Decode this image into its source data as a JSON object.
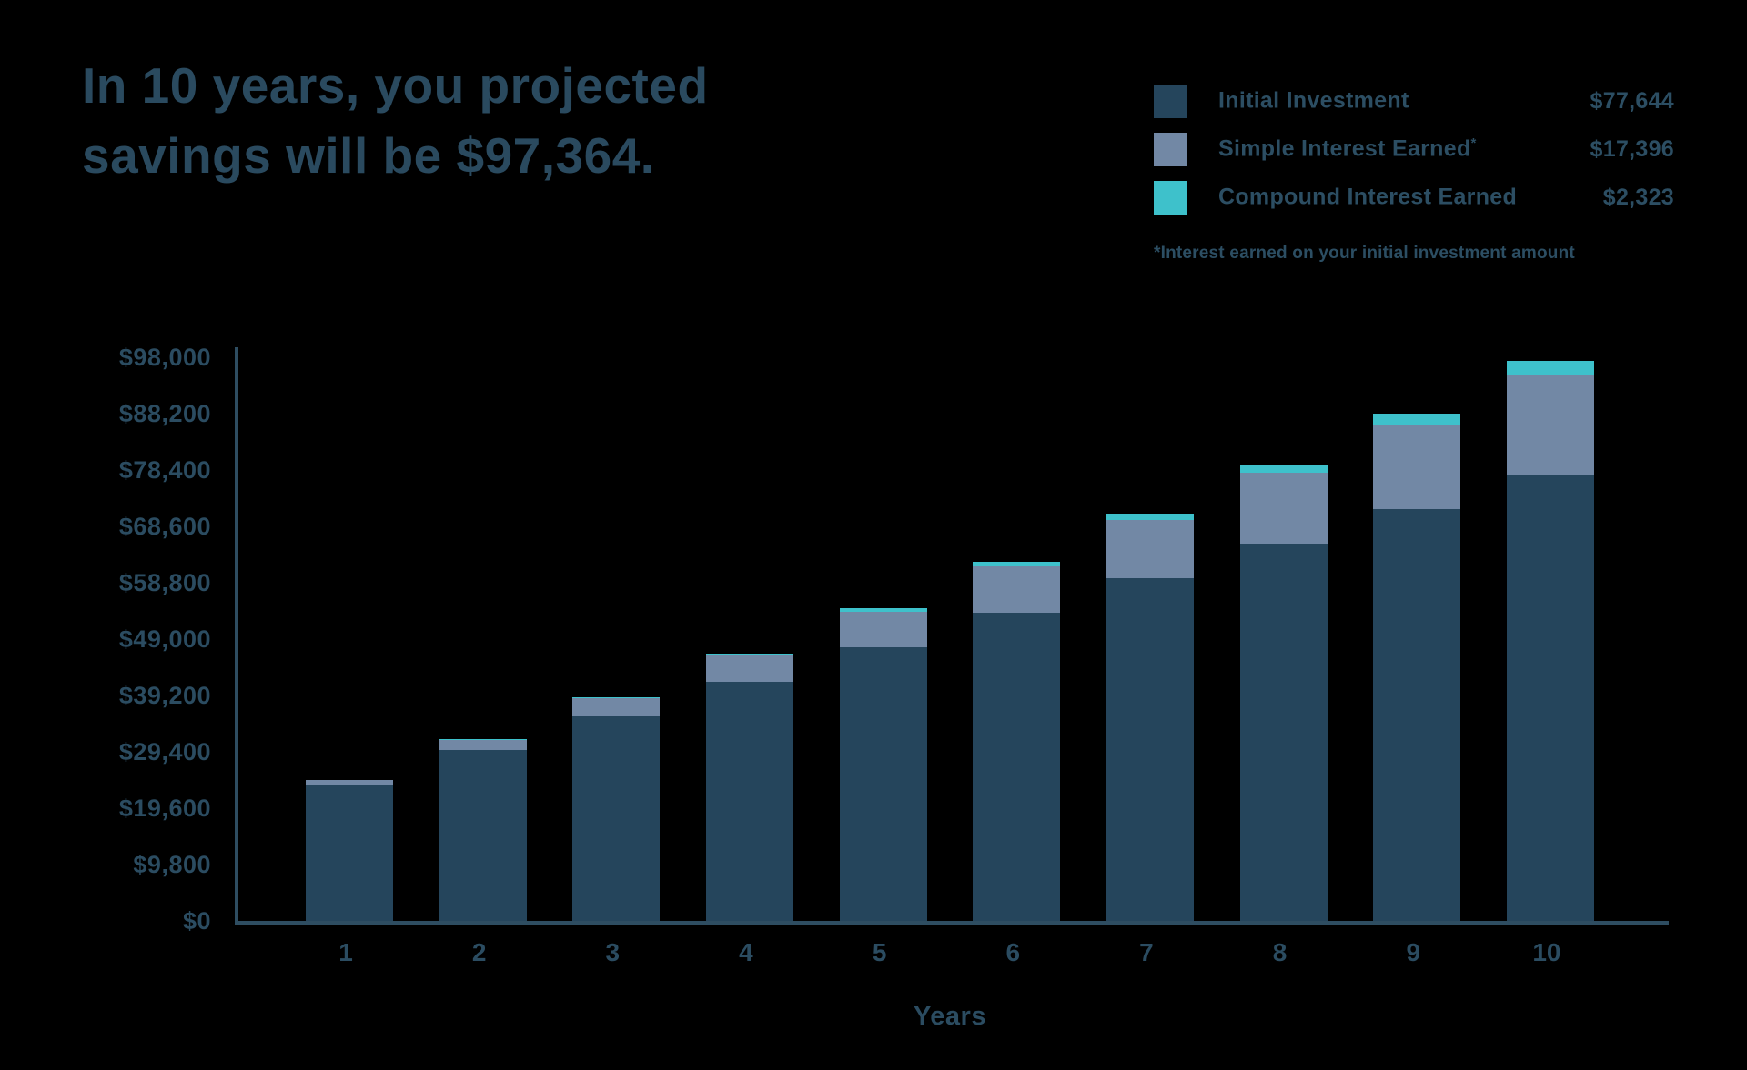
{
  "title": {
    "lines": [
      "In 10 years, you projected",
      "savings will be $97,364."
    ]
  },
  "legend": {
    "items": [
      {
        "label": "Initial Investment",
        "sup": "",
        "value": "$77,644",
        "color": "#25455c"
      },
      {
        "label": "Simple Interest Earned",
        "sup": "*",
        "value": "$17,396",
        "color": "#7288a5"
      },
      {
        "label": "Compound Interest Earned",
        "sup": "",
        "value": "$2,323",
        "color": "#3ec1cb"
      }
    ],
    "footnote": "*Interest earned on your initial investment amount"
  },
  "chart_data": {
    "type": "bar",
    "stacked": true,
    "xlabel": "Years",
    "ylabel": "",
    "grid": false,
    "legend_position": "top-right",
    "categories": [
      "1",
      "2",
      "3",
      "4",
      "5",
      "6",
      "7",
      "8",
      "9",
      "10"
    ],
    "series": [
      {
        "name": "Initial Investment",
        "color": "#25455c",
        "values": [
          23644,
          29644,
          35644,
          41644,
          47644,
          53644,
          59644,
          65644,
          71644,
          77644
        ]
      },
      {
        "name": "Simple Interest Earned*",
        "color": "#7288a5",
        "values": [
          812,
          1831,
          3055,
          4487,
          6123,
          7966,
          10016,
          12271,
          14732,
          17396
        ]
      },
      {
        "name": "Compound Interest Earned",
        "color": "#3ec1cb",
        "values": [
          23,
          93,
          209,
          372,
          581,
          836,
          1138,
          1487,
          1882,
          2323
        ]
      }
    ],
    "totals": [
      24479,
      31568,
      38908,
      46503,
      54348,
      62446,
      70798,
      79402,
      88258,
      97364
    ],
    "projected_total": "$97,364",
    "ylim": [
      0,
      98000
    ],
    "y_ticks": [
      {
        "value": 0,
        "label": "$0"
      },
      {
        "value": 9800,
        "label": "$9,800"
      },
      {
        "value": 19600,
        "label": "$19,600"
      },
      {
        "value": 29400,
        "label": "$29,400"
      },
      {
        "value": 39200,
        "label": "$39,200"
      },
      {
        "value": 49000,
        "label": "$49,000"
      },
      {
        "value": 58800,
        "label": "$58,800"
      },
      {
        "value": 68600,
        "label": "$68,600"
      },
      {
        "value": 78400,
        "label": "$78,400"
      },
      {
        "value": 88200,
        "label": "$88,200"
      },
      {
        "value": 98000,
        "label": "$98,000"
      }
    ],
    "colors": {
      "background": "#000000",
      "text": "#2b4c61",
      "axis": "#2e4d61"
    }
  }
}
